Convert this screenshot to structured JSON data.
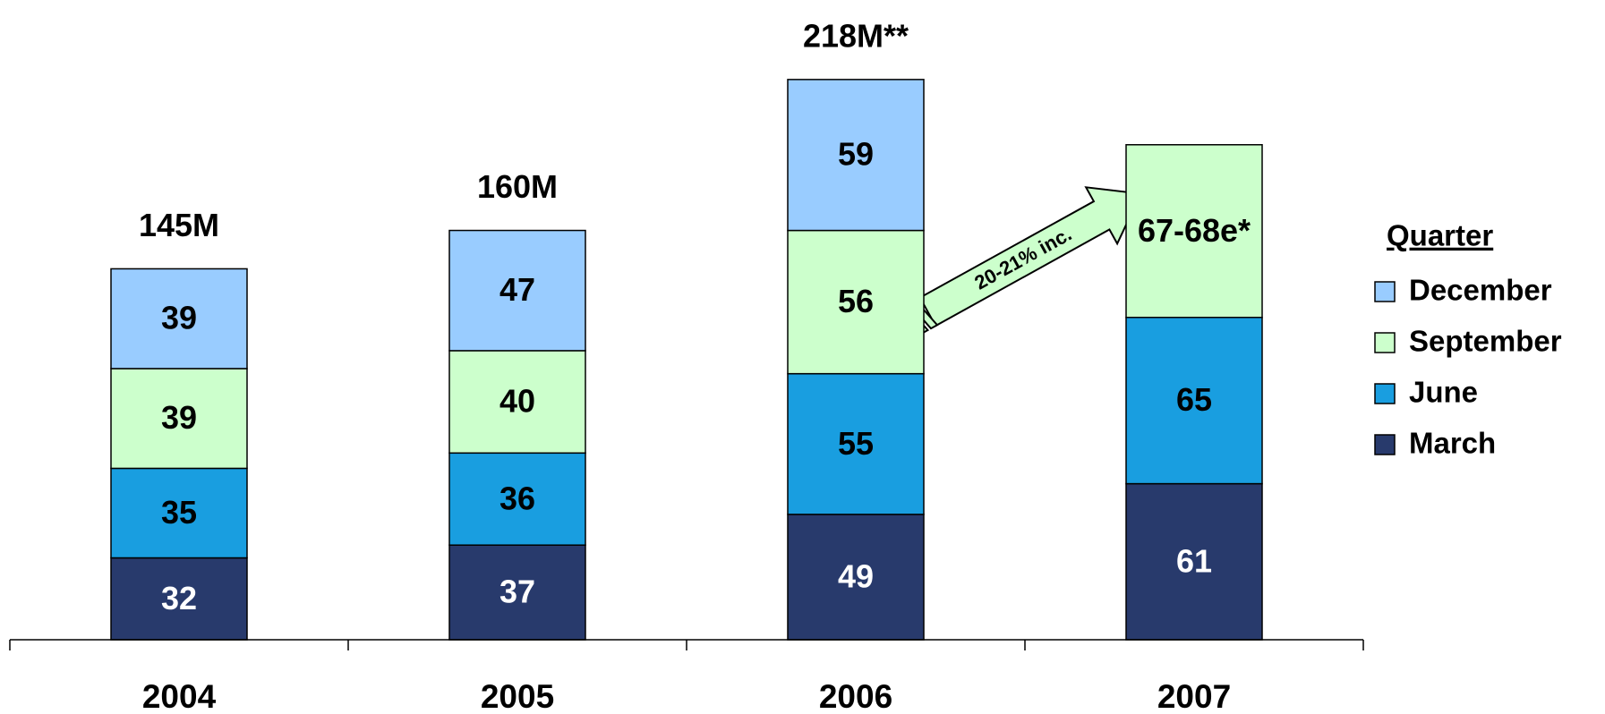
{
  "chart_data": {
    "type": "stacked-bar",
    "categories": [
      "2004",
      "2005",
      "2006",
      "2007"
    ],
    "series": [
      {
        "name": "March",
        "color": "#283a6c",
        "label_color": "#ffffff",
        "values": [
          32,
          37,
          49,
          61
        ]
      },
      {
        "name": "June",
        "color": "#199ee0",
        "label_color": "#000000",
        "values": [
          35,
          36,
          55,
          65
        ]
      },
      {
        "name": "September",
        "color": "#ccffcc",
        "label_color": "#000000",
        "values": [
          39,
          40,
          56,
          67.5
        ],
        "value_labels": [
          "39",
          "40",
          "56",
          "67-68e*"
        ]
      },
      {
        "name": "December",
        "color": "#99ccff",
        "label_color": "#000000",
        "values": [
          39,
          47,
          59,
          null
        ]
      }
    ],
    "total_labels": [
      "145M",
      "160M",
      "218M**"
    ],
    "legend_title": "Quarter",
    "legend_position": "right",
    "annotation": "20-21% inc.",
    "ylim": [
      0,
      220
    ]
  }
}
